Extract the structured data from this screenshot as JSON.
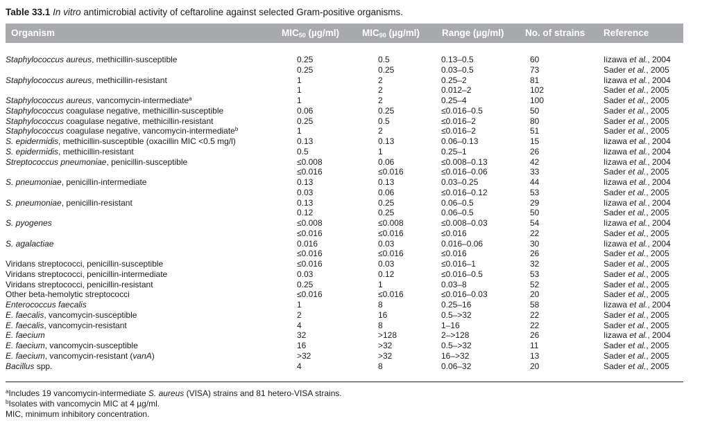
{
  "caption": {
    "label": "Table 33.1",
    "italic": "In vitro",
    "rest": " antimicrobial activity of ceftaroline against selected Gram-positive organisms."
  },
  "header": {
    "organism": "Organism",
    "mic50": "MIC",
    "mic50_sub": "50",
    "mic50_unit": " (µg/ml)",
    "mic90": "MIC",
    "mic90_sub": "90",
    "mic90_unit": " (µg/ml)",
    "range": "Range (µg/ml)",
    "strains": "No. of strains",
    "reference": "Reference"
  },
  "rows": [
    {
      "org_it": "Staphylococcus aureus",
      "org_rest": ", methicillin-susceptible",
      "mic50": "0.25",
      "mic90": "0.5",
      "range": "0.13–0.5",
      "n": "60",
      "ref_a": "Iizawa ",
      "ref_b": ", 2004"
    },
    {
      "mic50": "0.25",
      "mic90": "0.25",
      "range": "0.03–0.5",
      "n": "73",
      "ref_a": "Sader ",
      "ref_b": ", 2005"
    },
    {
      "org_it": "Staphylococcus aureus",
      "org_rest": ", methicillin-resistant",
      "mic50": "1",
      "mic90": "2",
      "range": "0.25–2",
      "n": "81",
      "ref_a": "Iizawa ",
      "ref_b": ", 2004"
    },
    {
      "mic50": "1",
      "mic90": "2",
      "range": "0.012–2",
      "n": "102",
      "ref_a": "Sader ",
      "ref_b": ", 2005"
    },
    {
      "org_it": "Staphylococcus aureus",
      "org_rest": ", vancomycin-intermediate",
      "sup": "a",
      "mic50": "1",
      "mic90": "2",
      "range": "0.25–4",
      "n": "100",
      "ref_a": "Sader ",
      "ref_b": ", 2005"
    },
    {
      "org_it": "Staphylococcus",
      "org_rest": " coagulase negative, methicillin-susceptible",
      "mic50": "0.06",
      "mic90": "0.25",
      "range": "≤0.016–0.5",
      "n": "50",
      "ref_a": "Sader ",
      "ref_b": ", 2005"
    },
    {
      "org_it": "Staphylococcus",
      "org_rest": " coagulase negative, methicillin-resistant",
      "mic50": "0.25",
      "mic90": "0.5",
      "range": "≤0.016–2",
      "n": "80",
      "ref_a": "Sader ",
      "ref_b": ", 2005"
    },
    {
      "org_it": "Staphylococcus",
      "org_rest": " coagulase negative, vancomycin-intermediate",
      "sup": "b",
      "mic50": "1",
      "mic90": "2",
      "range": "≤0.016–2",
      "n": "51",
      "ref_a": "Sader ",
      "ref_b": ", 2005"
    },
    {
      "org_it": "S. epidermidis",
      "org_rest": ", methicillin-susceptible (oxacillin MIC <0.5 mg/l)",
      "mic50": "0.13",
      "mic90": "0.13",
      "range": "0.06–0.13",
      "n": "15",
      "ref_a": "Iizawa ",
      "ref_b": ", 2004"
    },
    {
      "org_it": "S. epidermidis",
      "org_rest": ", methicillin-resistant",
      "mic50": "0.5",
      "mic90": "1",
      "range": "0.25–1",
      "n": "26",
      "ref_a": "Iizawa ",
      "ref_b": ", 2004"
    },
    {
      "org_it": "Streptococcus pneumoniae",
      "org_rest": ", penicillin-susceptible",
      "mic50": "≤0.008",
      "mic90": "0.06",
      "range": "≤0.008–0.13",
      "n": "42",
      "ref_a": "Iizawa ",
      "ref_b": ", 2004"
    },
    {
      "mic50": "≤0.016",
      "mic90": "≤0.016",
      "range": "≤0.016–0.06",
      "n": "33",
      "ref_a": "Sader ",
      "ref_b": ", 2005"
    },
    {
      "org_it": "S. pneumoniae",
      "org_rest": ", penicillin-intermediate",
      "mic50": "0.13",
      "mic90": "0.13",
      "range": "0.03–0.25",
      "n": "44",
      "ref_a": "Iizawa ",
      "ref_b": ", 2004"
    },
    {
      "mic50": "0.03",
      "mic90": "0.06",
      "range": "≤0.016–0.12",
      "n": "53",
      "ref_a": "Sader ",
      "ref_b": ", 2005"
    },
    {
      "org_it": "S. pneumoniae",
      "org_rest": ", penicillin-resistant",
      "mic50": "0.13",
      "mic90": "0.25",
      "range": "0.06–0.5",
      "n": "29",
      "ref_a": "Iizawa ",
      "ref_b": ", 2004"
    },
    {
      "mic50": "0.12",
      "mic90": "0.25",
      "range": "0.06–0.5",
      "n": "50",
      "ref_a": "Sader ",
      "ref_b": ", 2005"
    },
    {
      "org_it": "S. pyogenes",
      "org_rest": "",
      "mic50": "≤0.008",
      "mic90": "≤0.008",
      "range": "≤0.008–0.03",
      "n": "54",
      "ref_a": "Iizawa ",
      "ref_b": ", 2004"
    },
    {
      "mic50": "≤0.016",
      "mic90": "≤0.016",
      "range": "≤0.016",
      "n": "22",
      "ref_a": "Sader ",
      "ref_b": ", 2005"
    },
    {
      "org_it": "S. agalactiae",
      "org_rest": "",
      "mic50": "0.016",
      "mic90": "0.03",
      "range": "0.016–0.06",
      "n": "30",
      "ref_a": "Iizawa ",
      "ref_b": ", 2004"
    },
    {
      "mic50": "≤0.016",
      "mic90": "≤0.016",
      "range": "≤0.016",
      "n": "26",
      "ref_a": "Sader ",
      "ref_b": ", 2005"
    },
    {
      "org_it": "",
      "org_rest": "Viridans streptococci, penicillin-susceptible",
      "mic50": "≤0.016",
      "mic90": "0.03",
      "range": "≤0.016–1",
      "n": "32",
      "ref_a": "Sader ",
      "ref_b": ", 2005"
    },
    {
      "org_it": "",
      "org_rest": "Viridans streptococci, penicillin-intermediate",
      "mic50": "0.03",
      "mic90": "0.12",
      "range": "≤0.016–0.5",
      "n": "53",
      "ref_a": "Sader ",
      "ref_b": ", 2005"
    },
    {
      "org_it": "",
      "org_rest": "Viridans streptococci, penicillin-resistant",
      "mic50": "0.25",
      "mic90": "1",
      "range": "0.03–8",
      "n": "52",
      "ref_a": "Sader ",
      "ref_b": ", 2005"
    },
    {
      "org_it": "",
      "org_rest": "Other beta-hemolytic streptococci",
      "mic50": "≤0.016",
      "mic90": "≤0.016",
      "range": "≤0.016–0.03",
      "n": "20",
      "ref_a": "Sader ",
      "ref_b": ", 2005"
    },
    {
      "org_it": "Enterococcus faecalis",
      "org_rest": "",
      "mic50": "1",
      "mic90": "8",
      "range": "0.25–16",
      "n": "58",
      "ref_a": "Iizawa ",
      "ref_b": ", 2004"
    },
    {
      "org_it": "E. faecalis",
      "org_rest": ", vancomycin-susceptible",
      "mic50": "2",
      "mic90": "16",
      "range": "0.5–>32",
      "n": "22",
      "ref_a": "Sader ",
      "ref_b": ", 2005"
    },
    {
      "org_it": "E. faecalis",
      "org_rest": ", vancomycin-resistant",
      "mic50": "4",
      "mic90": "8",
      "range": "1–16",
      "n": "22",
      "ref_a": "Sader ",
      "ref_b": ", 2005"
    },
    {
      "org_it": "E. faecium",
      "org_rest": "",
      "mic50": "32",
      "mic90": ">128",
      "range": "2–>128",
      "n": "26",
      "ref_a": "Iizawa ",
      "ref_b": ", 2004"
    },
    {
      "org_it": "E. faecium",
      "org_rest": ", vancomycin-susceptible",
      "mic50": "16",
      "mic90": ">32",
      "range": "0.5–>32",
      "n": "11",
      "ref_a": "Sader ",
      "ref_b": ", 2005"
    },
    {
      "org_it": "E. faecium",
      "org_rest": ", vancomycin-resistant (",
      "org_it2": "vanA",
      "org_rest2": ")",
      "mic50": ">32",
      "mic90": ">32",
      "range": "16–>32",
      "n": "13",
      "ref_a": "Sader ",
      "ref_b": ", 2005"
    },
    {
      "org_it": "Bacillus",
      "org_rest": " spp.",
      "mic50": "4",
      "mic90": "8",
      "range": "0.06–32",
      "n": "20",
      "ref_a": "Sader ",
      "ref_b": ", 2005"
    }
  ],
  "ref_etal": "et al.",
  "footnotes": {
    "a_sup": "a",
    "a_pre": "Includes 19 vancomycin-intermediate ",
    "a_it": "S. aureus",
    "a_post": " (VISA) strains and 81 hetero-VISA strains.",
    "b_sup": "b",
    "b_text": "Isolates with vancomycin MIC at 4 µg/ml.",
    "abbr": "MIC, minimum inhibitory concentration."
  }
}
